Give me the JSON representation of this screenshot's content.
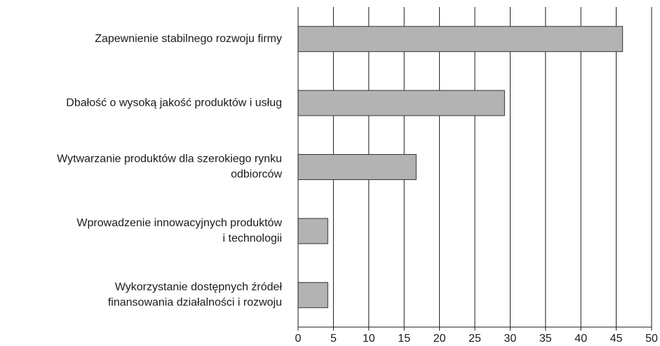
{
  "chart_data": {
    "type": "bar",
    "orientation": "horizontal",
    "categories": [
      "Zapewnienie stabilnego rozwoju firmy",
      "Dbałość o wysoką jakość produktów i usług",
      "Wytwarzanie produktów dla szerokiego rynku\nodbiorców",
      "Wprowadzenie innowacyjnych produktów\ni technologii",
      "Wykorzystanie dostępnych źródeł\nfinansowania działalności i rozwoju"
    ],
    "values": [
      45.9,
      29.2,
      16.7,
      4.2,
      4.2
    ],
    "color": "#b3b3b3",
    "xlim": [
      0,
      50
    ],
    "xticks": [
      0,
      5,
      10,
      15,
      20,
      25,
      30,
      35,
      40,
      45,
      50
    ],
    "grid": true
  }
}
